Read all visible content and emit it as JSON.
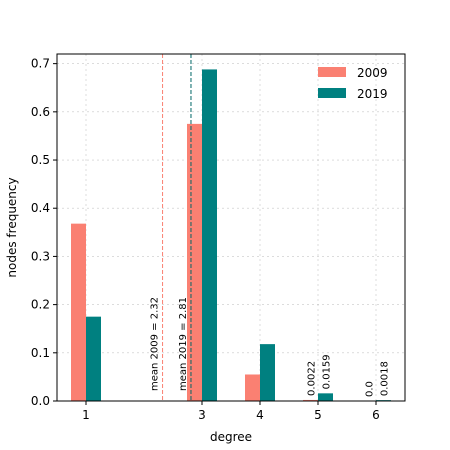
{
  "chart_data": {
    "type": "bar",
    "title": "",
    "xlabel": "degree",
    "ylabel": "nodes frequency",
    "xlim": [
      0.5,
      6.5
    ],
    "ylim": [
      0,
      0.72
    ],
    "x_ticks": [
      1,
      3,
      4,
      5,
      6
    ],
    "y_ticks": [
      0.0,
      0.1,
      0.2,
      0.3,
      0.4,
      0.5,
      0.6,
      0.7
    ],
    "y_tick_labels": [
      "0.0",
      "0.1",
      "0.2",
      "0.3",
      "0.4",
      "0.5",
      "0.6",
      "0.7"
    ],
    "grid": true,
    "legend_position": "top-right",
    "x": [
      1,
      3,
      4,
      5,
      6
    ],
    "series": [
      {
        "name": "2009",
        "color": "#fa8072",
        "values": [
          0.368,
          0.575,
          0.055,
          0.0022,
          0.0
        ]
      },
      {
        "name": "2019",
        "color": "#008080",
        "values": [
          0.175,
          0.688,
          0.118,
          0.0159,
          0.0018
        ]
      }
    ],
    "bar_value_labels": [
      {
        "x": 5,
        "series": "2009",
        "text": "0.0022"
      },
      {
        "x": 5,
        "series": "2019",
        "text": "0.0159"
      },
      {
        "x": 6,
        "series": "2009",
        "text": "0.0"
      },
      {
        "x": 6,
        "series": "2019",
        "text": "0.0018"
      }
    ],
    "mean_lines": [
      {
        "x": 2.32,
        "color": "#fa8072",
        "label": "mean 2009 = 2.32"
      },
      {
        "x": 2.81,
        "color": "#006666",
        "label": "mean 2019 = 2.81"
      }
    ]
  }
}
